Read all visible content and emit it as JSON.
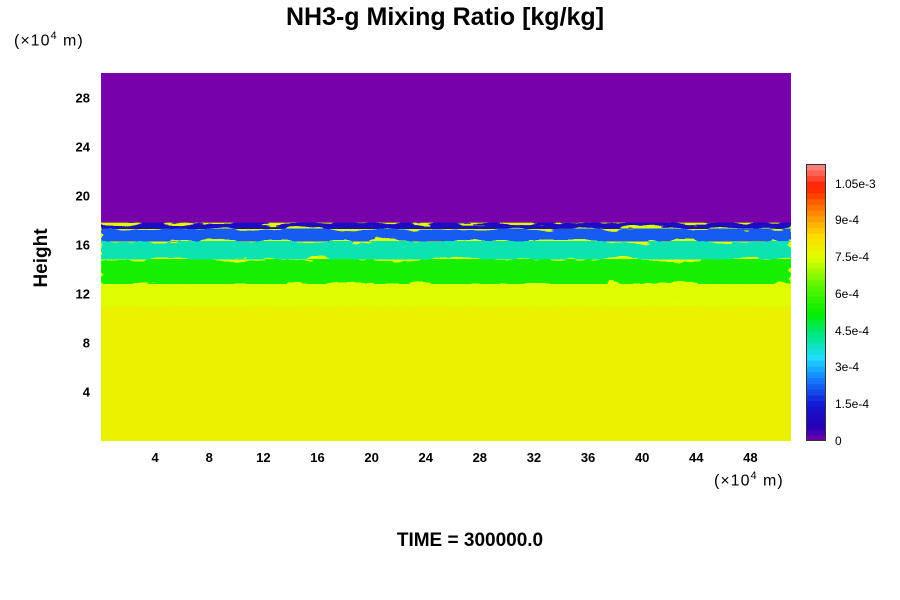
{
  "chart_data": {
    "type": "heatmap",
    "title": "NH3-g Mixing Ratio [kg/kg]",
    "xunit": {
      "prefix": "(×10",
      "exp": "4",
      "suffix": " m)"
    },
    "yunit": {
      "prefix": "(×10",
      "exp": "4",
      "suffix": " m)"
    },
    "ylabel": "Height",
    "xlabel": "",
    "time_label": "TIME = 300000.0",
    "xlim": [
      0,
      51
    ],
    "ylim": [
      0,
      30
    ],
    "x_ticks": [
      4,
      8,
      12,
      16,
      20,
      24,
      28,
      32,
      36,
      40,
      44,
      48
    ],
    "y_ticks": [
      4,
      8,
      12,
      16,
      20,
      24,
      28
    ],
    "colorbar": {
      "min": 0,
      "max": 0.00113,
      "ticks": [
        {
          "value": 0,
          "label": "0"
        },
        {
          "value": 0.00015,
          "label": "1.5e-4"
        },
        {
          "value": 0.0003,
          "label": "3e-4"
        },
        {
          "value": 0.00045,
          "label": "4.5e-4"
        },
        {
          "value": 0.0006,
          "label": "6e-4"
        },
        {
          "value": 0.00075,
          "label": "7.5e-4"
        },
        {
          "value": 0.0009,
          "label": "9e-4"
        },
        {
          "value": 0.00105,
          "label": "1.05e-3"
        }
      ]
    },
    "layers": [
      {
        "y_bottom": 0,
        "y_top": 11,
        "value": 0.00078
      },
      {
        "y_bottom": 11,
        "y_top": 12.8,
        "value": 0.00075
      },
      {
        "y_bottom": 12.8,
        "y_top": 14.8,
        "value": 0.00055
      },
      {
        "y_bottom": 14.8,
        "y_top": 16.3,
        "value": 0.0004
      },
      {
        "y_bottom": 16.3,
        "y_top": 17.3,
        "value": 0.00022
      },
      {
        "y_bottom": 17.3,
        "y_top": 17.8,
        "value": 0.0001
      },
      {
        "y_bottom": 17.8,
        "y_top": 30,
        "value": 0
      }
    ],
    "colors": {
      "upper": "#7700aa",
      "lower": "#ddff00",
      "band_yellow": "#eeff22",
      "green": "#00ee00",
      "cyan": "#22ddff",
      "blue": "#1111cc",
      "top": "#ff8888"
    }
  }
}
